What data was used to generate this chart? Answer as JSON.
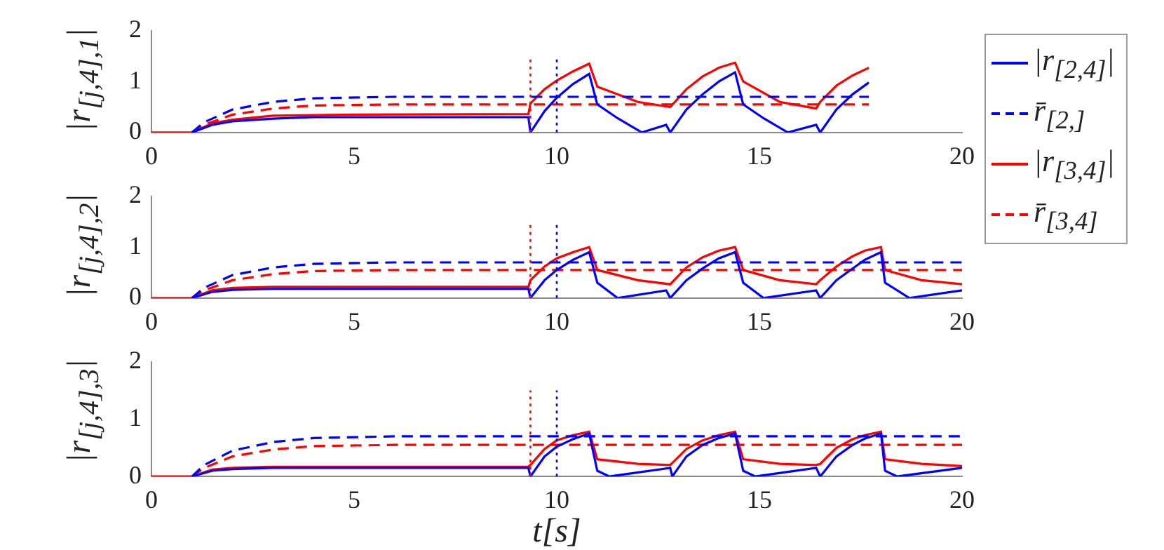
{
  "chart_data": [
    {
      "type": "line",
      "ylabel": "|r$_{[j,4],1}$|",
      "xlim": [
        0,
        20
      ],
      "ylim": [
        0,
        2
      ],
      "xticks": [
        0,
        5,
        10,
        15,
        20
      ],
      "yticks": [
        0,
        1,
        2
      ],
      "marker": "none",
      "legend": "right",
      "ref_lines": [
        {
          "axis": "x",
          "value": 9.35,
          "color": "#ff0000",
          "line_style": "dotted"
        },
        {
          "axis": "x",
          "value": 10,
          "color": "#0000ff",
          "line_style": "dotted"
        }
      ],
      "series": [
        {
          "name": "|r$_{[2,4]}$|",
          "color": "#0000ff",
          "line_style": "solid",
          "x": [
            1,
            1.5,
            2,
            3,
            4,
            6,
            9.3,
            9.35,
            9.7,
            10,
            10.4,
            10.8,
            11,
            11.5,
            12.1,
            12.7,
            12.8,
            13.2,
            13.6,
            14,
            14.4,
            14.6,
            15.1,
            15.7,
            16.4,
            16.5,
            16.9,
            17.3,
            17.7
          ],
          "values": [
            0,
            0.15,
            0.22,
            0.27,
            0.3,
            0.3,
            0.3,
            0,
            0.42,
            0.68,
            0.95,
            1.15,
            0.55,
            0.28,
            0,
            0.15,
            0,
            0.45,
            0.75,
            1,
            1.18,
            0.55,
            0.28,
            0,
            0.15,
            0,
            0.45,
            0.75,
            0.98
          ]
        },
        {
          "name": "r̄$_{[2,]}$",
          "color": "#0000ff",
          "line_style": "dashed",
          "x": [
            1,
            1.3,
            2,
            3,
            4,
            6,
            17.7
          ],
          "values": [
            0,
            0.2,
            0.45,
            0.6,
            0.67,
            0.7,
            0.7
          ]
        },
        {
          "name": "|r$_{[3,4]}$|",
          "color": "#ff0000",
          "line_style": "solid",
          "x": [
            0,
            1,
            1.5,
            2,
            3,
            5,
            9.3,
            9.35,
            9.7,
            10,
            10.4,
            10.8,
            11,
            12,
            12.8,
            13.2,
            13.6,
            14,
            14.4,
            14.6,
            15.5,
            16.4,
            16.5,
            16.9,
            17.3,
            17.7
          ],
          "values": [
            0,
            0,
            0.18,
            0.25,
            0.33,
            0.35,
            0.36,
            0.57,
            0.85,
            1.02,
            1.2,
            1.35,
            0.9,
            0.6,
            0.5,
            0.85,
            1.1,
            1.27,
            1.37,
            1,
            0.6,
            0.47,
            0.6,
            0.92,
            1.12,
            1.27
          ]
        },
        {
          "name": "r̄$_{[3,4]}$",
          "color": "#ff0000",
          "line_style": "dashed",
          "x": [
            1,
            1.3,
            2,
            3,
            4,
            6,
            17.7
          ],
          "values": [
            0,
            0.15,
            0.35,
            0.47,
            0.53,
            0.55,
            0.55
          ]
        }
      ]
    },
    {
      "type": "line",
      "ylabel": "|r$_{[j,4],2}$|",
      "xlim": [
        0,
        20
      ],
      "ylim": [
        0,
        2
      ],
      "xticks": [
        0,
        5,
        10,
        15,
        20
      ],
      "yticks": [
        0,
        1,
        2
      ],
      "marker": "none",
      "ref_lines": [
        {
          "axis": "x",
          "value": 9.35,
          "color": "#ff0000",
          "line_style": "dotted"
        },
        {
          "axis": "x",
          "value": 10,
          "color": "#0000ff",
          "line_style": "dotted"
        }
      ],
      "series": [
        {
          "color": "#0000ff",
          "line_style": "solid",
          "x": [
            1,
            1.5,
            2,
            3,
            9.3,
            9.35,
            9.7,
            10,
            10.4,
            10.8,
            11,
            11.5,
            12.7,
            12.8,
            13.2,
            13.6,
            14,
            14.4,
            14.6,
            15.1,
            16.4,
            16.5,
            16.9,
            17.3,
            17.6,
            18,
            18.1,
            18.7,
            20
          ],
          "values": [
            0,
            0.12,
            0.16,
            0.18,
            0.18,
            0,
            0.35,
            0.55,
            0.75,
            0.9,
            0.3,
            0,
            0.15,
            0,
            0.35,
            0.58,
            0.78,
            0.9,
            0.3,
            0,
            0.15,
            0,
            0.35,
            0.58,
            0.75,
            0.9,
            0.3,
            0,
            0.15
          ]
        },
        {
          "color": "#0000ff",
          "line_style": "dashed",
          "x": [
            1,
            1.3,
            2,
            3,
            4,
            6,
            20
          ],
          "values": [
            0,
            0.2,
            0.45,
            0.6,
            0.67,
            0.7,
            0.7
          ]
        },
        {
          "color": "#ff0000",
          "line_style": "solid",
          "x": [
            0,
            1,
            1.5,
            2,
            3,
            9.3,
            9.35,
            9.7,
            10,
            10.4,
            10.8,
            11,
            12,
            12.8,
            13.2,
            13.6,
            14,
            14.4,
            14.6,
            15.5,
            16.4,
            16.5,
            16.9,
            17.3,
            17.6,
            18,
            18.1,
            19,
            20
          ],
          "values": [
            0,
            0,
            0.15,
            0.2,
            0.22,
            0.22,
            0.35,
            0.62,
            0.78,
            0.9,
            1,
            0.55,
            0.35,
            0.27,
            0.6,
            0.8,
            0.93,
            1,
            0.55,
            0.35,
            0.27,
            0.35,
            0.62,
            0.82,
            0.93,
            1,
            0.55,
            0.35,
            0.27
          ]
        },
        {
          "color": "#ff0000",
          "line_style": "dashed",
          "x": [
            1,
            1.3,
            2,
            3,
            4,
            6,
            20
          ],
          "values": [
            0,
            0.15,
            0.35,
            0.47,
            0.53,
            0.55,
            0.55
          ]
        }
      ]
    },
    {
      "type": "line",
      "xlabel": "t[s]",
      "ylabel": "|r$_{[j,4],3}$|",
      "xlim": [
        0,
        20
      ],
      "ylim": [
        0,
        2
      ],
      "xticks": [
        0,
        5,
        10,
        15,
        20
      ],
      "yticks": [
        0,
        1,
        2
      ],
      "marker": "none",
      "ref_lines": [
        {
          "axis": "x",
          "value": 9.35,
          "color": "#ff0000",
          "line_style": "dotted"
        },
        {
          "axis": "x",
          "value": 10,
          "color": "#0000ff",
          "line_style": "dotted"
        }
      ],
      "series": [
        {
          "color": "#0000ff",
          "line_style": "solid",
          "x": [
            1,
            1.5,
            2,
            3,
            9.3,
            9.35,
            9.7,
            10,
            10.4,
            10.8,
            11,
            11.3,
            12.8,
            12.85,
            13.2,
            13.6,
            14,
            14.4,
            14.6,
            14.9,
            16.4,
            16.5,
            16.9,
            17.3,
            17.6,
            18,
            18.1,
            18.4,
            20
          ],
          "values": [
            0,
            0.1,
            0.13,
            0.15,
            0.15,
            0,
            0.35,
            0.52,
            0.65,
            0.75,
            0.1,
            0,
            0.15,
            0,
            0.35,
            0.55,
            0.67,
            0.75,
            0.1,
            0,
            0.15,
            0,
            0.35,
            0.55,
            0.66,
            0.75,
            0.1,
            0,
            0.15
          ]
        },
        {
          "color": "#0000ff",
          "line_style": "dashed",
          "x": [
            1,
            1.3,
            2,
            3,
            4,
            6,
            20
          ],
          "values": [
            0,
            0.2,
            0.45,
            0.6,
            0.67,
            0.7,
            0.7
          ]
        },
        {
          "color": "#ff0000",
          "line_style": "solid",
          "x": [
            0,
            1,
            1.5,
            2,
            3,
            9.3,
            9.35,
            9.7,
            10,
            10.4,
            10.8,
            11,
            12,
            12.8,
            13.2,
            13.6,
            14,
            14.4,
            14.6,
            15.5,
            16.4,
            16.5,
            16.9,
            17.3,
            17.6,
            18,
            18.1,
            19,
            20
          ],
          "values": [
            0,
            0,
            0.12,
            0.15,
            0.17,
            0.17,
            0.2,
            0.48,
            0.63,
            0.72,
            0.78,
            0.3,
            0.22,
            0.2,
            0.48,
            0.63,
            0.72,
            0.78,
            0.3,
            0.22,
            0.2,
            0.22,
            0.5,
            0.65,
            0.72,
            0.78,
            0.3,
            0.22,
            0.18
          ]
        },
        {
          "color": "#ff0000",
          "line_style": "dashed",
          "x": [
            1,
            1.3,
            2,
            3,
            4,
            6,
            20
          ],
          "values": [
            0,
            0.15,
            0.35,
            0.47,
            0.53,
            0.55,
            0.55
          ]
        }
      ]
    }
  ]
}
